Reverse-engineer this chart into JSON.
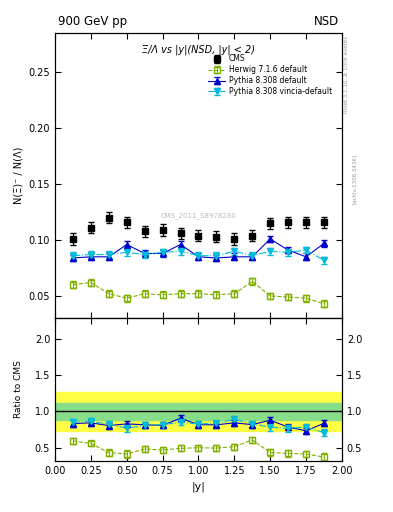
{
  "title_left": "900 GeV pp",
  "title_right": "NSD",
  "plot_title": "Ξ̲/Λ vs |y|(NSD, |y| < 2)",
  "watermark": "CMS_2011_S8978280",
  "ylabel_main": "N(Ξ)⁻ / N(Λ)",
  "ylabel_ratio": "Ratio to CMS",
  "xlabel": "|y|",
  "right_label": "Rivet 3.1.10, ≥ 100k events",
  "arxiv_label": "[arXiv:1306.3436]",
  "xlim": [
    0.0,
    2.0
  ],
  "ylim_main": [
    0.03,
    0.285
  ],
  "ylim_ratio": [
    0.32,
    2.28
  ],
  "yticks_main": [
    0.05,
    0.1,
    0.15,
    0.2,
    0.25
  ],
  "yticks_ratio": [
    0.5,
    1.0,
    1.5,
    2.0
  ],
  "cms_x": [
    0.125,
    0.25,
    0.375,
    0.5,
    0.625,
    0.75,
    0.875,
    1.0,
    1.125,
    1.25,
    1.375,
    1.5,
    1.625,
    1.75,
    1.875
  ],
  "cms_y": [
    0.101,
    0.111,
    0.12,
    0.116,
    0.108,
    0.109,
    0.106,
    0.104,
    0.103,
    0.101,
    0.104,
    0.115,
    0.116,
    0.116,
    0.116
  ],
  "cms_yerr": [
    0.005,
    0.005,
    0.005,
    0.005,
    0.005,
    0.005,
    0.005,
    0.005,
    0.005,
    0.005,
    0.005,
    0.005,
    0.005,
    0.005,
    0.005
  ],
  "herwig_x": [
    0.125,
    0.25,
    0.375,
    0.5,
    0.625,
    0.75,
    0.875,
    1.0,
    1.125,
    1.25,
    1.375,
    1.5,
    1.625,
    1.75,
    1.875
  ],
  "herwig_y": [
    0.06,
    0.062,
    0.052,
    0.048,
    0.052,
    0.051,
    0.052,
    0.052,
    0.051,
    0.052,
    0.063,
    0.05,
    0.049,
    0.048,
    0.043
  ],
  "herwig_yerr": [
    0.003,
    0.003,
    0.003,
    0.003,
    0.003,
    0.003,
    0.003,
    0.003,
    0.003,
    0.003,
    0.003,
    0.003,
    0.003,
    0.003,
    0.003
  ],
  "pythia_def_x": [
    0.125,
    0.25,
    0.375,
    0.5,
    0.625,
    0.75,
    0.875,
    1.0,
    1.125,
    1.25,
    1.375,
    1.5,
    1.625,
    1.75,
    1.875
  ],
  "pythia_def_y": [
    0.084,
    0.085,
    0.085,
    0.096,
    0.088,
    0.088,
    0.096,
    0.085,
    0.084,
    0.085,
    0.085,
    0.101,
    0.091,
    0.085,
    0.097
  ],
  "pythia_def_yerr": [
    0.003,
    0.003,
    0.003,
    0.003,
    0.003,
    0.003,
    0.003,
    0.003,
    0.003,
    0.003,
    0.003,
    0.003,
    0.003,
    0.003,
    0.003
  ],
  "pythia_vincia_x": [
    0.125,
    0.25,
    0.375,
    0.5,
    0.625,
    0.75,
    0.875,
    1.0,
    1.125,
    1.25,
    1.375,
    1.5,
    1.625,
    1.75,
    1.875
  ],
  "pythia_vincia_y": [
    0.086,
    0.087,
    0.087,
    0.089,
    0.087,
    0.089,
    0.09,
    0.086,
    0.086,
    0.09,
    0.086,
    0.09,
    0.089,
    0.091,
    0.082
  ],
  "pythia_vincia_yerr": [
    0.003,
    0.003,
    0.003,
    0.003,
    0.003,
    0.003,
    0.003,
    0.003,
    0.003,
    0.003,
    0.003,
    0.003,
    0.003,
    0.003,
    0.003
  ],
  "ratio_herwig_y": [
    0.594,
    0.558,
    0.433,
    0.414,
    0.481,
    0.468,
    0.491,
    0.5,
    0.495,
    0.515,
    0.606,
    0.435,
    0.422,
    0.414,
    0.371
  ],
  "ratio_herwig_yerr": [
    0.04,
    0.04,
    0.05,
    0.05,
    0.04,
    0.04,
    0.04,
    0.04,
    0.04,
    0.04,
    0.04,
    0.05,
    0.05,
    0.04,
    0.05
  ],
  "ratio_pythia_def_y": [
    0.832,
    0.842,
    0.804,
    0.828,
    0.815,
    0.807,
    0.906,
    0.817,
    0.815,
    0.842,
    0.817,
    0.878,
    0.784,
    0.733,
    0.836
  ],
  "ratio_pythia_def_yerr": [
    0.045,
    0.04,
    0.04,
    0.04,
    0.04,
    0.04,
    0.04,
    0.04,
    0.04,
    0.04,
    0.04,
    0.04,
    0.04,
    0.04,
    0.04
  ],
  "ratio_pythia_vincia_y": [
    0.851,
    0.862,
    0.823,
    0.768,
    0.806,
    0.817,
    0.849,
    0.827,
    0.834,
    0.891,
    0.827,
    0.783,
    0.767,
    0.784,
    0.707
  ],
  "ratio_pythia_vincia_yerr": [
    0.04,
    0.04,
    0.04,
    0.05,
    0.04,
    0.04,
    0.04,
    0.04,
    0.04,
    0.04,
    0.04,
    0.05,
    0.05,
    0.04,
    0.05
  ],
  "band_yellow_lo": 0.73,
  "band_yellow_hi": 1.27,
  "band_green_lo": 0.88,
  "band_green_hi": 1.12,
  "color_cms": "#000000",
  "color_herwig": "#80b000",
  "color_pythia_def": "#0000cc",
  "color_pythia_vincia": "#00bbdd",
  "color_band_yellow": "#ffff44",
  "color_band_green": "#88dd88",
  "bg_color": "#ffffff"
}
